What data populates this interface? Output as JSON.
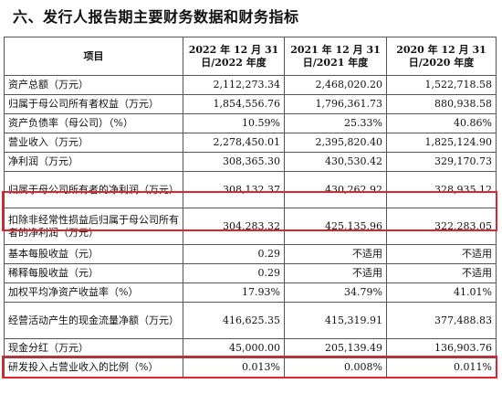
{
  "section_title": "六、发行人报告期主要财务数据和财务指标",
  "table": {
    "headers": [
      "项目",
      "2022 年 12 月 31 日/2022 年度",
      "2021 年 12 月 31 日/2021 年度",
      "2020 年 12 月 31 日/2020 年度"
    ],
    "rows": [
      [
        "资产总额（万元）",
        "2,112,273.34",
        "2,468,020.20",
        "1,522,718.58"
      ],
      [
        "归属于母公司所有者权益（万元）",
        "1,854,556.76",
        "1,796,361.73",
        "880,938.58"
      ],
      [
        "资产负债率（母公司）（%）",
        "10.59%",
        "25.33%",
        "40.86%"
      ],
      [
        "营业收入（万元）",
        "2,278,450.01",
        "2,395,820.40",
        "1,825,124.90"
      ],
      [
        "净利润（万元）",
        "308,365.30",
        "430,530.42",
        "329,170.73"
      ],
      [
        "归属于母公司所有者的净利润（万元）",
        "308,132.37",
        "430,262.92",
        "328,935.12"
      ],
      [
        "扣除非经常性损益后归属于母公司所有者的净利润（万元）",
        "304,283.32",
        "425,135.96",
        "322,283.05"
      ],
      [
        "基本每股收益（元）",
        "0.29",
        "不适用",
        "不适用"
      ],
      [
        "稀释每股收益（元）",
        "0.29",
        "不适用",
        "不适用"
      ],
      [
        "加权平均净资产收益率（%）",
        "17.93%",
        "34.79%",
        "41.01%"
      ],
      [
        "经营活动产生的现金流量净额（万元）",
        "416,625.35",
        "415,319.91",
        "377,488.83"
      ],
      [
        "现金分红（万元）",
        "45,000.00",
        "205,139.49",
        "136,903.76"
      ],
      [
        "研发投入占营业收入的比例（%）",
        "0.013%",
        "0.008%",
        "0.011%"
      ]
    ]
  },
  "highlight_color": "#e0242d"
}
